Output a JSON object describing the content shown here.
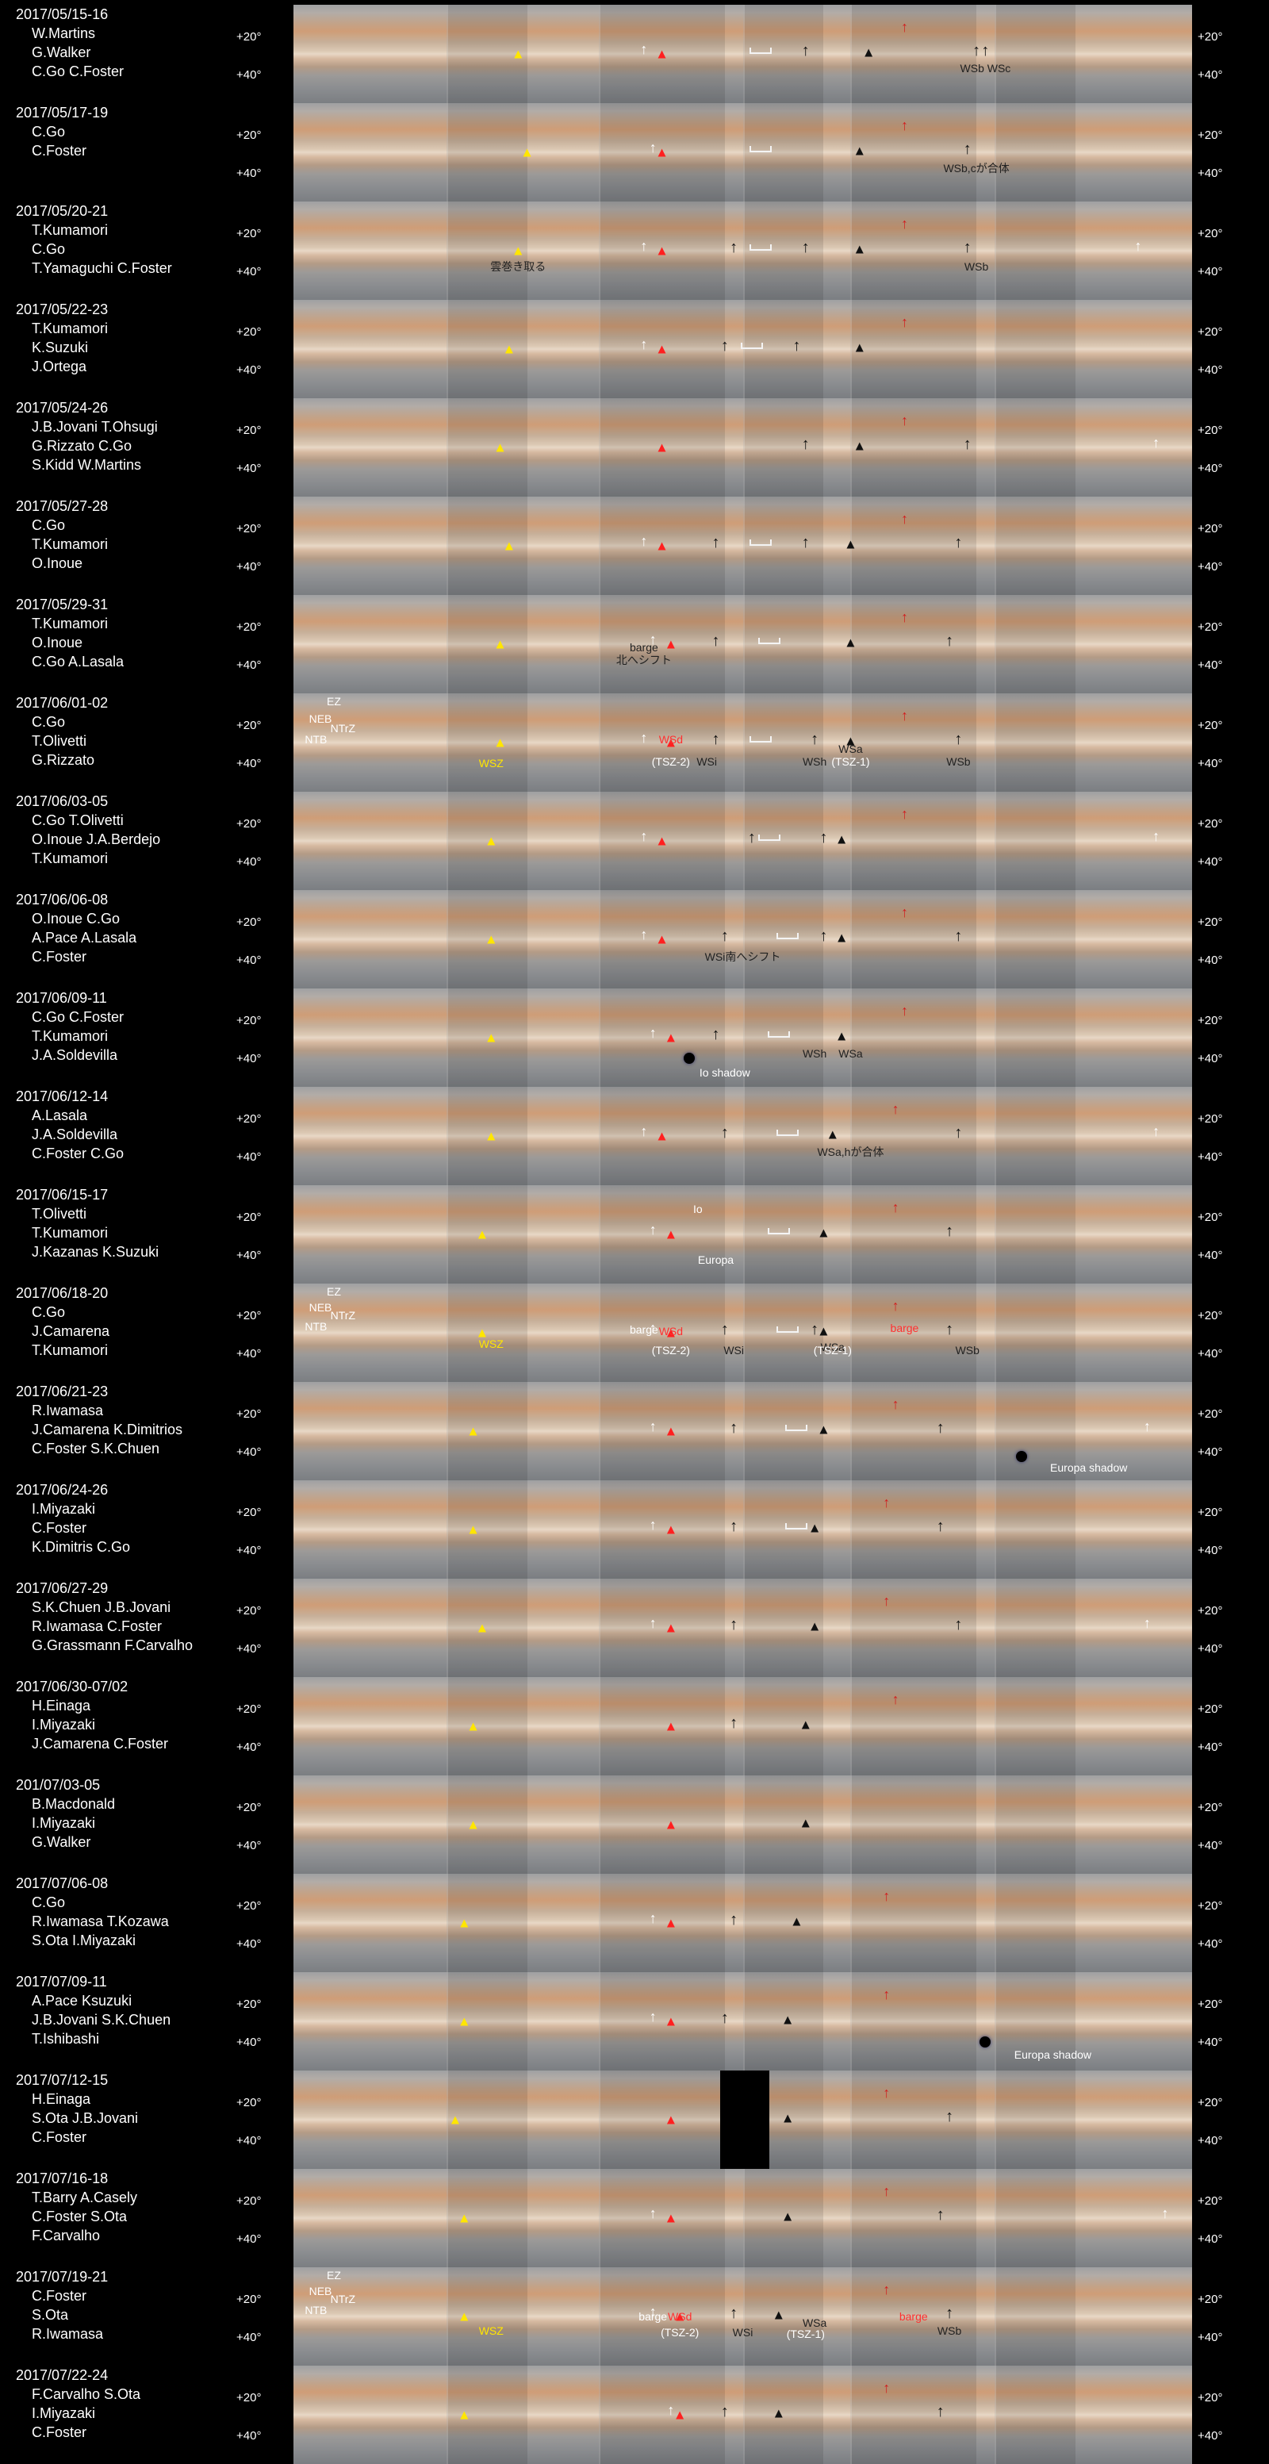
{
  "latitude_labels": [
    "+20°",
    "+40°"
  ],
  "rows": [
    {
      "date": "2017/05/15-16",
      "observers": [
        "W.Martins",
        "G.Walker",
        "C.Go  C.Foster"
      ],
      "labels": [
        {
          "text": "WSb WSc",
          "cls": "dark"
        }
      ]
    },
    {
      "date": "2017/05/17-19",
      "observers": [
        "C.Go",
        "C.Foster"
      ],
      "labels": [
        {
          "text": "WSb,cが合体",
          "cls": "dark"
        }
      ]
    },
    {
      "date": "2017/05/20-21",
      "observers": [
        "T.Kumamori",
        "C.Go",
        "T.Yamaguchi  C.Foster"
      ],
      "labels": [
        {
          "text": "雲巻き取る",
          "cls": "dark"
        },
        {
          "text": "WSb",
          "cls": "dark"
        }
      ]
    },
    {
      "date": "2017/05/22-23",
      "observers": [
        "T.Kumamori",
        "K.Suzuki",
        "J.Ortega"
      ],
      "labels": []
    },
    {
      "date": "2017/05/24-26",
      "observers": [
        "J.B.Jovani  T.Ohsugi",
        "G.Rizzato  C.Go",
        "S.Kidd  W.Martins"
      ],
      "labels": []
    },
    {
      "date": "2017/05/27-28",
      "observers": [
        "C.Go",
        "T.Kumamori",
        "O.Inoue"
      ],
      "labels": []
    },
    {
      "date": "2017/05/29-31",
      "observers": [
        "T.Kumamori",
        "O.Inoue",
        "C.Go  A.Lasala"
      ],
      "labels": [
        {
          "text": "barge",
          "cls": "dark"
        },
        {
          "text": "北へシフト",
          "cls": "dark"
        }
      ]
    },
    {
      "date": "2017/06/01-02",
      "observers": [
        "C.Go",
        "T.Olivetti",
        "G.Rizzato"
      ],
      "labels": [
        {
          "text": "EZ",
          "cls": "light"
        },
        {
          "text": "NEB",
          "cls": "light"
        },
        {
          "text": "NTrZ",
          "cls": "light"
        },
        {
          "text": "NTB",
          "cls": "light"
        },
        {
          "text": "WSZ",
          "cls": "yel"
        },
        {
          "text": "WSd",
          "cls": "red"
        },
        {
          "text": "(TSZ-2)",
          "cls": "light"
        },
        {
          "text": "WSi",
          "cls": "dark"
        },
        {
          "text": "WSh",
          "cls": "dark"
        },
        {
          "text": "WSa",
          "cls": "dark"
        },
        {
          "text": "(TSZ-1)",
          "cls": "light"
        },
        {
          "text": "WSb",
          "cls": "dark"
        }
      ]
    },
    {
      "date": "2017/06/03-05",
      "observers": [
        "C.Go  T.Olivetti",
        "O.Inoue  J.A.Berdejo",
        "T.Kumamori"
      ],
      "labels": []
    },
    {
      "date": "2017/06/06-08",
      "observers": [
        "O.Inoue  C.Go",
        "A.Pace  A.Lasala",
        "C.Foster"
      ],
      "labels": [
        {
          "text": "WSi南へシフト",
          "cls": "dark"
        }
      ]
    },
    {
      "date": "2017/06/09-11",
      "observers": [
        "C.Go  C.Foster",
        "T.Kumamori",
        "J.A.Soldevilla"
      ],
      "labels": [
        {
          "text": "WSh",
          "cls": "dark"
        },
        {
          "text": "WSa",
          "cls": "dark"
        },
        {
          "text": "Io shadow",
          "cls": "light"
        }
      ]
    },
    {
      "date": "2017/06/12-14",
      "observers": [
        "A.Lasala",
        "J.A.Soldevilla",
        "C.Foster  C.Go"
      ],
      "labels": [
        {
          "text": "WSa,hが合体",
          "cls": "dark"
        }
      ]
    },
    {
      "date": "2017/06/15-17",
      "observers": [
        "T.Olivetti",
        "T.Kumamori",
        "J.Kazanas  K.Suzuki"
      ],
      "labels": [
        {
          "text": "Io",
          "cls": "light"
        },
        {
          "text": "Europa",
          "cls": "light"
        }
      ]
    },
    {
      "date": "2017/06/18-20",
      "observers": [
        "C.Go",
        "J.Camarena",
        "T.Kumamori"
      ],
      "labels": [
        {
          "text": "EZ",
          "cls": "light"
        },
        {
          "text": "NEB",
          "cls": "light"
        },
        {
          "text": "NTrZ",
          "cls": "light"
        },
        {
          "text": "NTB",
          "cls": "light"
        },
        {
          "text": "WSZ",
          "cls": "yel"
        },
        {
          "text": "barge",
          "cls": "light"
        },
        {
          "text": "WSd",
          "cls": "red"
        },
        {
          "text": "(TSZ-2)",
          "cls": "light"
        },
        {
          "text": "WSi",
          "cls": "dark"
        },
        {
          "text": "WSa",
          "cls": "dark"
        },
        {
          "text": "(TSZ-1)",
          "cls": "light"
        },
        {
          "text": "barge",
          "cls": "red"
        },
        {
          "text": "WSb",
          "cls": "dark"
        }
      ]
    },
    {
      "date": "2017/06/21-23",
      "observers": [
        "R.Iwamasa",
        "J.Camarena  K.Dimitrios",
        "C.Foster  S.K.Chuen"
      ],
      "labels": [
        {
          "text": "Europa shadow",
          "cls": "light"
        }
      ]
    },
    {
      "date": "2017/06/24-26",
      "observers": [
        "I.Miyazaki",
        "C.Foster",
        "K.Dimitris  C.Go"
      ],
      "labels": []
    },
    {
      "date": "2017/06/27-29",
      "observers": [
        "S.K.Chuen  J.B.Jovani",
        "R.Iwamasa  C.Foster",
        "G.Grassmann  F.Carvalho"
      ],
      "labels": []
    },
    {
      "date": "2017/06/30-07/02",
      "observers": [
        "H.Einaga",
        "I.Miyazaki",
        "J.Camarena  C.Foster"
      ],
      "labels": []
    },
    {
      "date": "201/07/03-05",
      "observers": [
        "B.Macdonald",
        "I.Miyazaki",
        "G.Walker"
      ],
      "labels": []
    },
    {
      "date": "2017/07/06-08",
      "observers": [
        "C.Go",
        "R.Iwamasa  T.Kozawa",
        "S.Ota  I.Miyazaki"
      ],
      "labels": []
    },
    {
      "date": "2017/07/09-11",
      "observers": [
        "A.Pace  Ksuzuki",
        "J.B.Jovani  S.K.Chuen",
        "T.Ishibashi"
      ],
      "labels": [
        {
          "text": "Europa shadow",
          "cls": "light"
        }
      ]
    },
    {
      "date": "2017/07/12-15",
      "observers": [
        "H.Einaga",
        "S.Ota  J.B.Jovani",
        "C.Foster"
      ],
      "labels": []
    },
    {
      "date": "2017/07/16-18",
      "observers": [
        "T.Barry  A.Casely",
        "C.Foster  S.Ota",
        "F.Carvalho"
      ],
      "labels": []
    },
    {
      "date": "2017/07/19-21",
      "observers": [
        "C.Foster",
        "S.Ota",
        "R.Iwamasa"
      ],
      "labels": [
        {
          "text": "EZ",
          "cls": "light"
        },
        {
          "text": "NEB",
          "cls": "light"
        },
        {
          "text": "NTrZ",
          "cls": "light"
        },
        {
          "text": "NTB",
          "cls": "light"
        },
        {
          "text": "WSZ",
          "cls": "yel"
        },
        {
          "text": "barge",
          "cls": "light"
        },
        {
          "text": "WSd",
          "cls": "red"
        },
        {
          "text": "(TSZ-2)",
          "cls": "light"
        },
        {
          "text": "WSi",
          "cls": "dark"
        },
        {
          "text": "WSa",
          "cls": "dark"
        },
        {
          "text": "(TSZ-1)",
          "cls": "light"
        },
        {
          "text": "barge",
          "cls": "red"
        },
        {
          "text": "WSb",
          "cls": "dark"
        }
      ]
    },
    {
      "date": "2017/07/22-24",
      "observers": [
        "F.Carvalho  S.Ota",
        "I.Miyazaki",
        "C.Foster"
      ],
      "labels": []
    }
  ]
}
